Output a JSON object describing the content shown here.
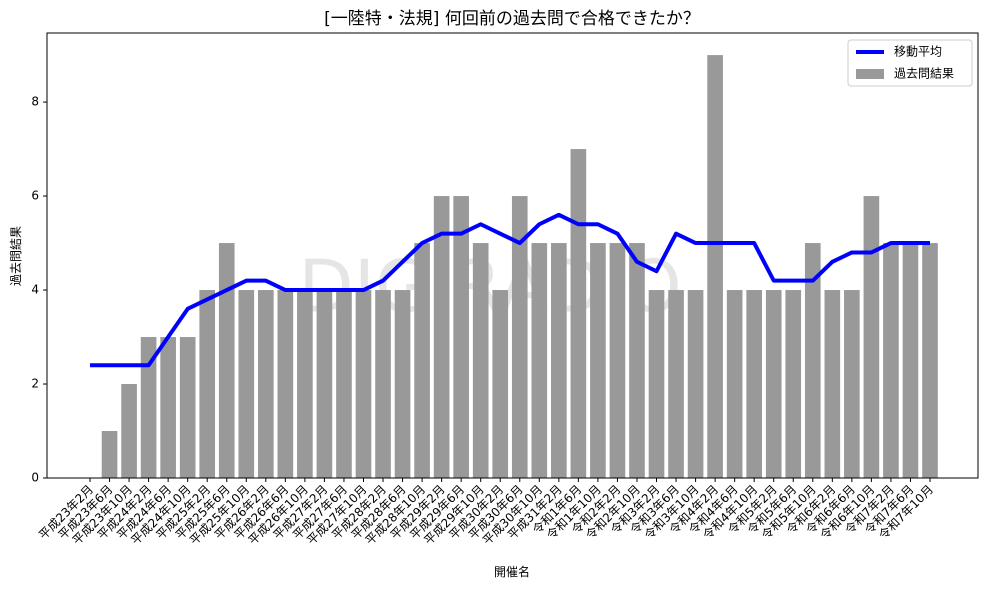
{
  "chart_data": {
    "type": "bar",
    "title": "[一陸特・法規] 何回前の過去問で合格できたか？",
    "x_label": "開催名",
    "y_label": "過去問結果",
    "watermark": "DIGIRADIO",
    "categories": [
      "平成23年2月",
      "平成23年6月",
      "平成23年10月",
      "平成24年2月",
      "平成24年6月",
      "平成24年10月",
      "平成25年2月",
      "平成25年6月",
      "平成25年10月",
      "平成26年2月",
      "平成26年6月",
      "平成26年10月",
      "平成27年2月",
      "平成27年6月",
      "平成27年10月",
      "平成28年2月",
      "平成28年6月",
      "平成28年10月",
      "平成29年2月",
      "平成29年6月",
      "平成29年10月",
      "平成30年2月",
      "平成30年6月",
      "平成30年10月",
      "平成31年2月",
      "令和1年6月",
      "令和1年10月",
      "令和2年2月",
      "令和2年10月",
      "令和3年2月",
      "令和3年6月",
      "令和3年10月",
      "令和4年2月",
      "令和4年6月",
      "令和4年10月",
      "令和5年2月",
      "令和5年6月",
      "令和5年10月",
      "令和6年2月",
      "令和6年6月",
      "令和6年10月",
      "令和7年2月",
      "令和7年6月",
      "令和7年10月"
    ],
    "series": [
      {
        "name": "移動平均",
        "type": "line",
        "color": "#0000ff",
        "values": [
          2.4,
          2.4,
          2.4,
          2.4,
          3.0,
          3.6,
          3.8,
          4.0,
          4.2,
          4.2,
          4.0,
          4.0,
          4.0,
          4.0,
          4.0,
          4.2,
          4.6,
          5.0,
          5.2,
          5.2,
          5.4,
          5.2,
          5.0,
          5.4,
          5.6,
          5.4,
          5.4,
          5.2,
          4.6,
          4.4,
          5.2,
          5.0,
          5.0,
          5.0,
          5.0,
          4.2,
          4.2,
          4.2,
          4.6,
          4.8,
          4.8,
          5.0,
          5.0,
          5.0
        ]
      },
      {
        "name": "過去問結果",
        "type": "bar",
        "color": "#999999",
        "values": [
          0,
          1,
          2,
          3,
          3,
          3,
          4,
          5,
          4,
          4,
          4,
          4,
          4,
          4,
          4,
          4,
          4,
          5,
          6,
          6,
          5,
          4,
          6,
          5,
          5,
          7,
          5,
          5,
          5,
          4,
          4,
          4,
          9,
          4,
          4,
          4,
          4,
          5,
          4,
          4,
          6,
          5,
          5,
          5
        ]
      }
    ],
    "ylim": [
      0,
      9.47
    ],
    "yticks": [
      0,
      2,
      4,
      6,
      8
    ],
    "legend": "upper right"
  }
}
